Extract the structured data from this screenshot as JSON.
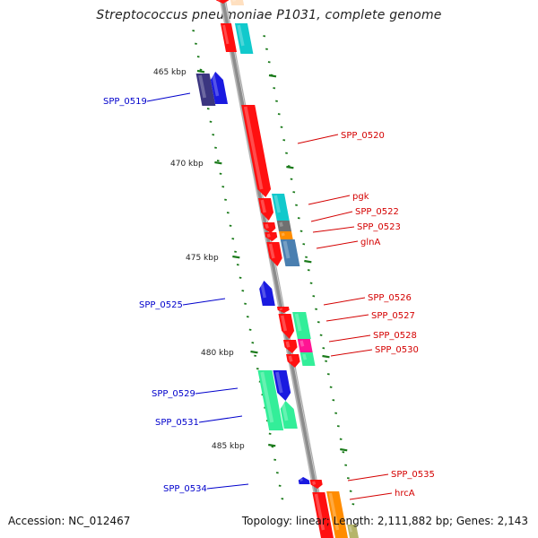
{
  "title": "Streptococcus pneumoniae P1031, complete genome",
  "footer": {
    "accession": "Accession: NC_012467",
    "topology": "Topology: linear; Length: 2,111,882 bp; Genes: 2,143"
  },
  "colors": {
    "backbone": "#8c8c8c",
    "tick": "#1a7a1a",
    "forward_label": "#d40000",
    "reverse_label": "#0000cc"
  },
  "scale_labels": [
    "465 kbp",
    "470 kbp",
    "475 kbp",
    "480 kbp",
    "485 kbp"
  ],
  "genes_reverse": [
    {
      "label": "SPP_0519",
      "colors": [
        "#3b3680",
        "#1a1ae0"
      ]
    },
    {
      "label": "SPP_0525",
      "colors": [
        "#1a1ae0"
      ]
    },
    {
      "label": "SPP_0529",
      "colors": [
        "#33ee99",
        "#1a1ae0"
      ]
    },
    {
      "label": "SPP_0531",
      "colors": [
        "#33ee99",
        "#1a1ae0"
      ]
    },
    {
      "label": "SPP_0534",
      "colors": [
        "#1a1ae0"
      ]
    }
  ],
  "genes_forward": [
    {
      "label": "SPP_0520",
      "colors": [
        "#ff1010"
      ]
    },
    {
      "label": "pgk",
      "colors": [
        "#ff1010",
        "#11c9cc"
      ]
    },
    {
      "label": "SPP_0522",
      "colors": [
        "#ff1010",
        "#707070"
      ]
    },
    {
      "label": "SPP_0523",
      "colors": [
        "#ff1010",
        "#ff8c00"
      ]
    },
    {
      "label": "glnA",
      "colors": [
        "#ff1010",
        "#4a7fb0"
      ]
    },
    {
      "label": "SPP_0526",
      "colors": [
        "#ff1010"
      ]
    },
    {
      "label": "SPP_0527",
      "colors": [
        "#ff1010",
        "#33ee99"
      ]
    },
    {
      "label": "SPP_0528",
      "colors": [
        "#ff1010",
        "#ff1493"
      ]
    },
    {
      "label": "SPP_0530",
      "colors": [
        "#ff1010",
        "#33ee99"
      ]
    },
    {
      "label": "SPP_0535",
      "colors": [
        "#ff1010"
      ]
    },
    {
      "label": "hrcA",
      "colors": [
        "#ff1010",
        "#ff8c00"
      ]
    }
  ]
}
